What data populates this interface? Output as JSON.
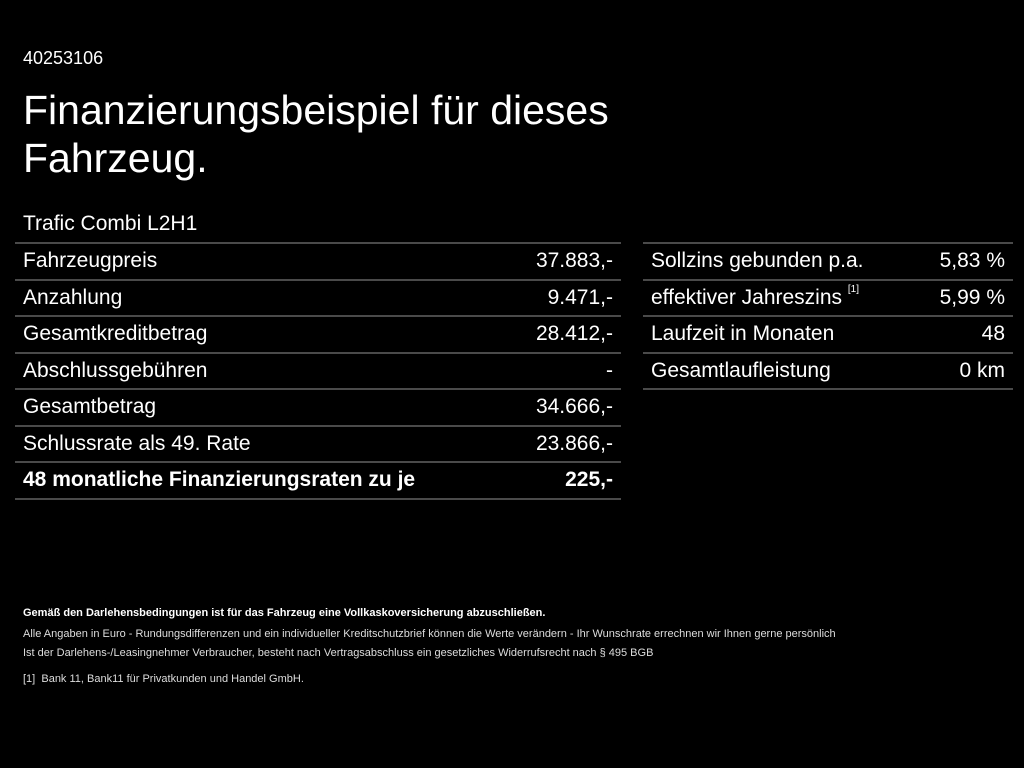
{
  "code": "40253106",
  "title": "Finanzierungsbeispiel für dieses Fahrzeug.",
  "model": "Trafic Combi L2H1",
  "left_table": [
    {
      "label": "Fahrzeugpreis",
      "value": "37.883,-"
    },
    {
      "label": "Anzahlung",
      "value": "9.471,-"
    },
    {
      "label": "Gesamtkreditbetrag",
      "value": "28.412,-"
    },
    {
      "label": "Abschlussgebühren",
      "value": "-"
    },
    {
      "label": "Gesamtbetrag",
      "value": "34.666,-"
    },
    {
      "label": "Schlussrate als 49. Rate",
      "value": "23.866,-"
    },
    {
      "label": "48 monatliche Finanzierungsraten zu je",
      "value": "225,-"
    }
  ],
  "right_table": [
    {
      "label": "Sollzins gebunden p.a.",
      "value": "5,83 %"
    },
    {
      "label": "effektiver Jahreszins",
      "sup": "[1]",
      "value": "5,99 %"
    },
    {
      "label": "Laufzeit in Monaten",
      "value": "48"
    },
    {
      "label": "Gesamtlaufleistung",
      "value": "0 km"
    }
  ],
  "footer": {
    "line1": "Gemäß den Darlehensbedingungen ist für das Fahrzeug eine Vollkaskoversicherung abzuschließen.",
    "line2": "Alle Angaben in Euro - Rundungsdifferenzen und ein individueller Kreditschutzbrief können die Werte verändern - Ihr Wunschrate errechnen wir Ihnen gerne persönlich",
    "line3": "Ist der Darlehens-/Leasingnehmer Verbraucher, besteht nach Vertragsabschluss ein gesetzliches Widerrufsrecht nach § 495 BGB",
    "footnote_mark": "[1]",
    "footnote": "Bank 11, Bank11 für Privatkunden und Handel GmbH."
  }
}
